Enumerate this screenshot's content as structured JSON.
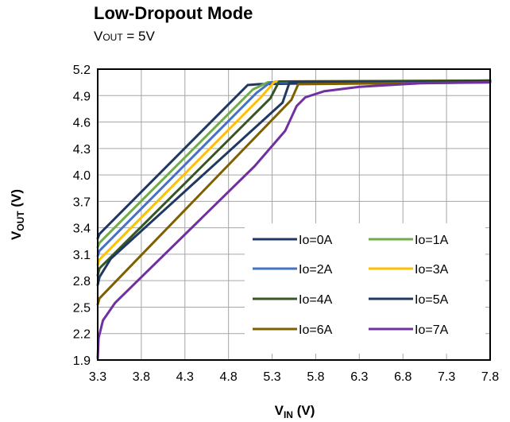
{
  "chart_data": {
    "type": "line",
    "title": "Low-Dropout Mode",
    "subtitle": {
      "prefix": "V",
      "sub": "OUT",
      "suffix": " = 5V"
    },
    "xlabel": {
      "main": "V",
      "sub": "IN",
      "suffix": " (V)"
    },
    "ylabel": {
      "main": "V",
      "sub": "OUT",
      "suffix": " (V)"
    },
    "xlim": [
      3.3,
      7.8
    ],
    "ylim": [
      1.9,
      5.2
    ],
    "xticks": [
      "3.3",
      "3.8",
      "4.3",
      "4.8",
      "5.3",
      "5.8",
      "6.3",
      "6.8",
      "7.3",
      "7.8"
    ],
    "yticks": [
      "1.9",
      "2.2",
      "2.5",
      "2.8",
      "3.1",
      "3.4",
      "3.7",
      "4.0",
      "4.3",
      "4.6",
      "4.9",
      "5.2"
    ],
    "grid": true,
    "legend_position": "bottom-right",
    "series": [
      {
        "name": "Io=0A",
        "color": "#1f3864",
        "x": [
          3.3,
          3.32,
          5.02,
          5.15,
          7.8
        ],
        "y": [
          3.28,
          3.33,
          5.02,
          5.03,
          5.07
        ]
      },
      {
        "name": "Io=1A",
        "color": "#70ad47",
        "x": [
          3.3,
          3.32,
          5.08,
          5.25,
          7.8
        ],
        "y": [
          3.18,
          3.23,
          4.97,
          5.05,
          5.07
        ]
      },
      {
        "name": "Io=2A",
        "color": "#4472c4",
        "x": [
          3.3,
          3.32,
          5.12,
          5.28,
          7.8
        ],
        "y": [
          3.08,
          3.14,
          4.93,
          5.05,
          5.07
        ]
      },
      {
        "name": "Io=3A",
        "color": "#ffc000",
        "x": [
          3.3,
          3.32,
          5.18,
          5.33,
          7.8
        ],
        "y": [
          2.98,
          3.04,
          4.89,
          5.06,
          5.07
        ]
      },
      {
        "name": "Io=4A",
        "color": "#375623",
        "x": [
          3.3,
          3.32,
          5.28,
          5.38,
          7.8
        ],
        "y": [
          2.86,
          2.94,
          4.87,
          5.06,
          5.07
        ]
      },
      {
        "name": "Io=5A",
        "color": "#203864",
        "x": [
          3.3,
          3.32,
          3.45,
          5.42,
          5.5,
          7.8
        ],
        "y": [
          2.75,
          2.84,
          3.05,
          4.82,
          5.05,
          5.06
        ]
      },
      {
        "name": "Io=6A",
        "color": "#7f6000",
        "x": [
          3.3,
          3.32,
          5.52,
          5.6,
          7.8
        ],
        "y": [
          2.53,
          2.6,
          4.85,
          5.03,
          5.05
        ]
      },
      {
        "name": "Io=7A",
        "color": "#7030a0",
        "x": [
          3.3,
          3.31,
          3.36,
          3.5,
          5.1,
          5.45,
          5.58,
          5.68,
          5.9,
          6.3,
          7.0,
          7.8
        ],
        "y": [
          1.92,
          2.15,
          2.35,
          2.55,
          4.1,
          4.5,
          4.78,
          4.88,
          4.95,
          5.0,
          5.04,
          5.05
        ]
      }
    ]
  }
}
